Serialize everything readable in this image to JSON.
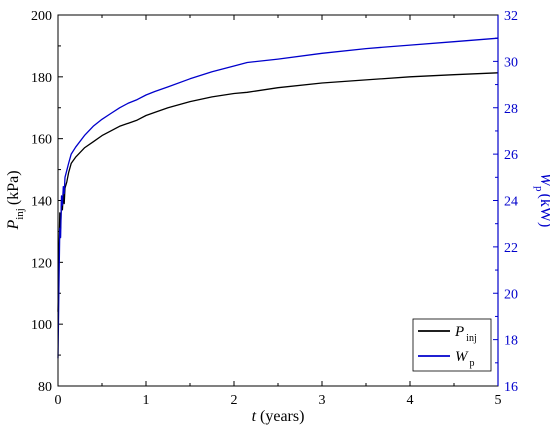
{
  "chart_data": {
    "type": "line",
    "title": "",
    "xlabel": "t (years)",
    "xlabel_parts": {
      "var": "t",
      "unit": "(years)"
    },
    "ylabel_left": "P inj (kPa)",
    "ylabel_left_parts": {
      "var": "P",
      "sub": "inj",
      "unit": "(kPa)"
    },
    "ylabel_right": "W p (kW)",
    "ylabel_right_parts": {
      "var": "W",
      "sub": "p",
      "unit": "(kW)"
    },
    "xlim": [
      0,
      5
    ],
    "ylim_left": [
      80,
      200
    ],
    "ylim_right": [
      16,
      32
    ],
    "xticks": [
      "0",
      "1",
      "2",
      "3",
      "4",
      "5"
    ],
    "yticks_left": [
      "80",
      "100",
      "120",
      "140",
      "160",
      "180",
      "200"
    ],
    "yticks_right": [
      "16",
      "18",
      "20",
      "22",
      "24",
      "26",
      "28",
      "30",
      "32"
    ],
    "grid": false,
    "legend_position": "bottom-right",
    "series": [
      {
        "name": "P inj",
        "name_parts": {
          "var": "P",
          "sub": "inj"
        },
        "axis": "left",
        "color": "#000000",
        "x": [
          0.0,
          0.01,
          0.02,
          0.03,
          0.04,
          0.05,
          0.06,
          0.07,
          0.08,
          0.1,
          0.12,
          0.15,
          0.2,
          0.3,
          0.4,
          0.5,
          0.6,
          0.7,
          0.8,
          0.9,
          1.0,
          1.1,
          1.25,
          1.5,
          1.75,
          2.0,
          2.15,
          2.5,
          3.0,
          3.5,
          4.0,
          4.5,
          5.0
        ],
        "y": [
          104,
          122,
          136,
          131,
          140,
          137,
          142,
          139,
          144,
          146,
          149,
          152,
          154,
          157,
          159,
          161,
          162.5,
          164,
          165,
          166,
          167.5,
          168.5,
          170,
          172,
          173.5,
          174.6,
          175,
          176.5,
          178,
          179,
          180,
          180.7,
          181.3
        ]
      },
      {
        "name": "W p",
        "name_parts": {
          "var": "W",
          "sub": "p"
        },
        "axis": "right",
        "color": "#0000cc",
        "x": [
          0.0,
          0.01,
          0.02,
          0.03,
          0.04,
          0.05,
          0.06,
          0.07,
          0.08,
          0.1,
          0.12,
          0.15,
          0.2,
          0.3,
          0.4,
          0.5,
          0.6,
          0.7,
          0.8,
          0.9,
          1.0,
          1.1,
          1.25,
          1.5,
          1.75,
          2.0,
          2.15,
          2.5,
          3.0,
          3.5,
          4.0,
          4.5,
          5.0
        ],
        "y": [
          17.2,
          20.2,
          22.8,
          22.4,
          24.2,
          23.8,
          24.6,
          24.3,
          25.0,
          25.3,
          25.6,
          26.0,
          26.3,
          26.8,
          27.2,
          27.5,
          27.75,
          28.0,
          28.2,
          28.35,
          28.55,
          28.7,
          28.9,
          29.25,
          29.55,
          29.8,
          29.95,
          30.1,
          30.35,
          30.55,
          30.7,
          30.85,
          31.0
        ]
      }
    ]
  }
}
